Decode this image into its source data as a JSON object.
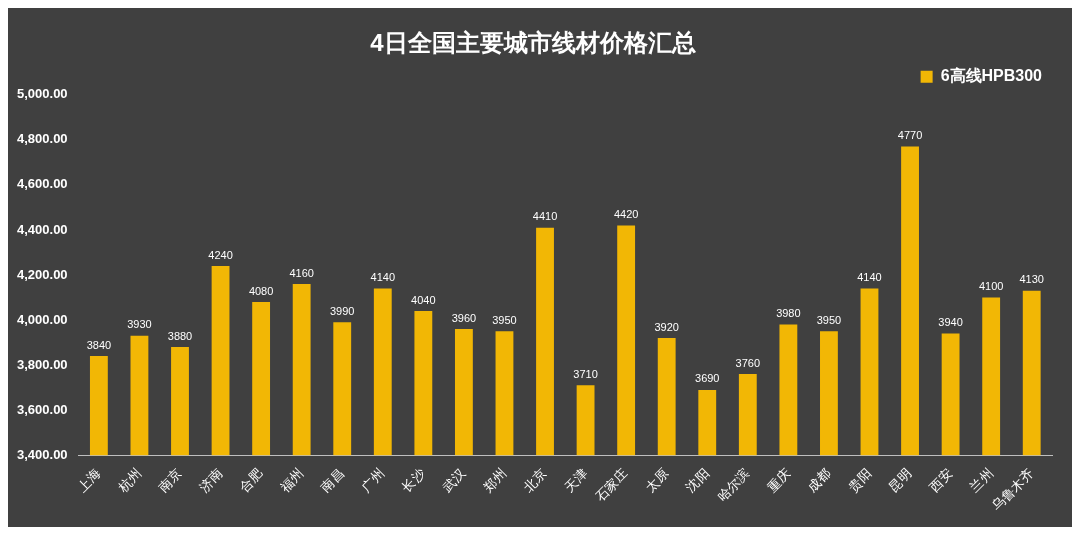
{
  "chart_data": {
    "type": "bar",
    "title": "4日全国主要城市线材价格汇总",
    "categories": [
      "上海",
      "杭州",
      "南京",
      "济南",
      "合肥",
      "福州",
      "南昌",
      "广州",
      "长沙",
      "武汉",
      "郑州",
      "北京",
      "天津",
      "石家庄",
      "太原",
      "沈阳",
      "哈尔滨",
      "重庆",
      "成都",
      "贵阳",
      "昆明",
      "西安",
      "兰州",
      "乌鲁木齐"
    ],
    "series": [
      {
        "name": "6高线HPB300",
        "color": "#f2b705",
        "values": [
          3840,
          3930,
          3880,
          4240,
          4080,
          4160,
          3990,
          4140,
          4040,
          3960,
          3950,
          4410,
          3710,
          4420,
          3920,
          3690,
          3760,
          3980,
          3950,
          4140,
          4770,
          3940,
          4100,
          4130
        ]
      }
    ],
    "ylim": [
      3400,
      5000
    ],
    "yticks": [
      {
        "value": 3400,
        "label": "3,400.00"
      },
      {
        "value": 3600,
        "label": "3,600.00"
      },
      {
        "value": 3800,
        "label": "3,800.00"
      },
      {
        "value": 4000,
        "label": "4,000.00"
      },
      {
        "value": 4200,
        "label": "4,200.00"
      },
      {
        "value": 4400,
        "label": "4,400.00"
      },
      {
        "value": 4600,
        "label": "4,600.00"
      },
      {
        "value": 4800,
        "label": "4,800.00"
      },
      {
        "value": 5000,
        "label": "5,000.00"
      }
    ],
    "grid": false,
    "legend": "top right",
    "data_labels": true
  }
}
